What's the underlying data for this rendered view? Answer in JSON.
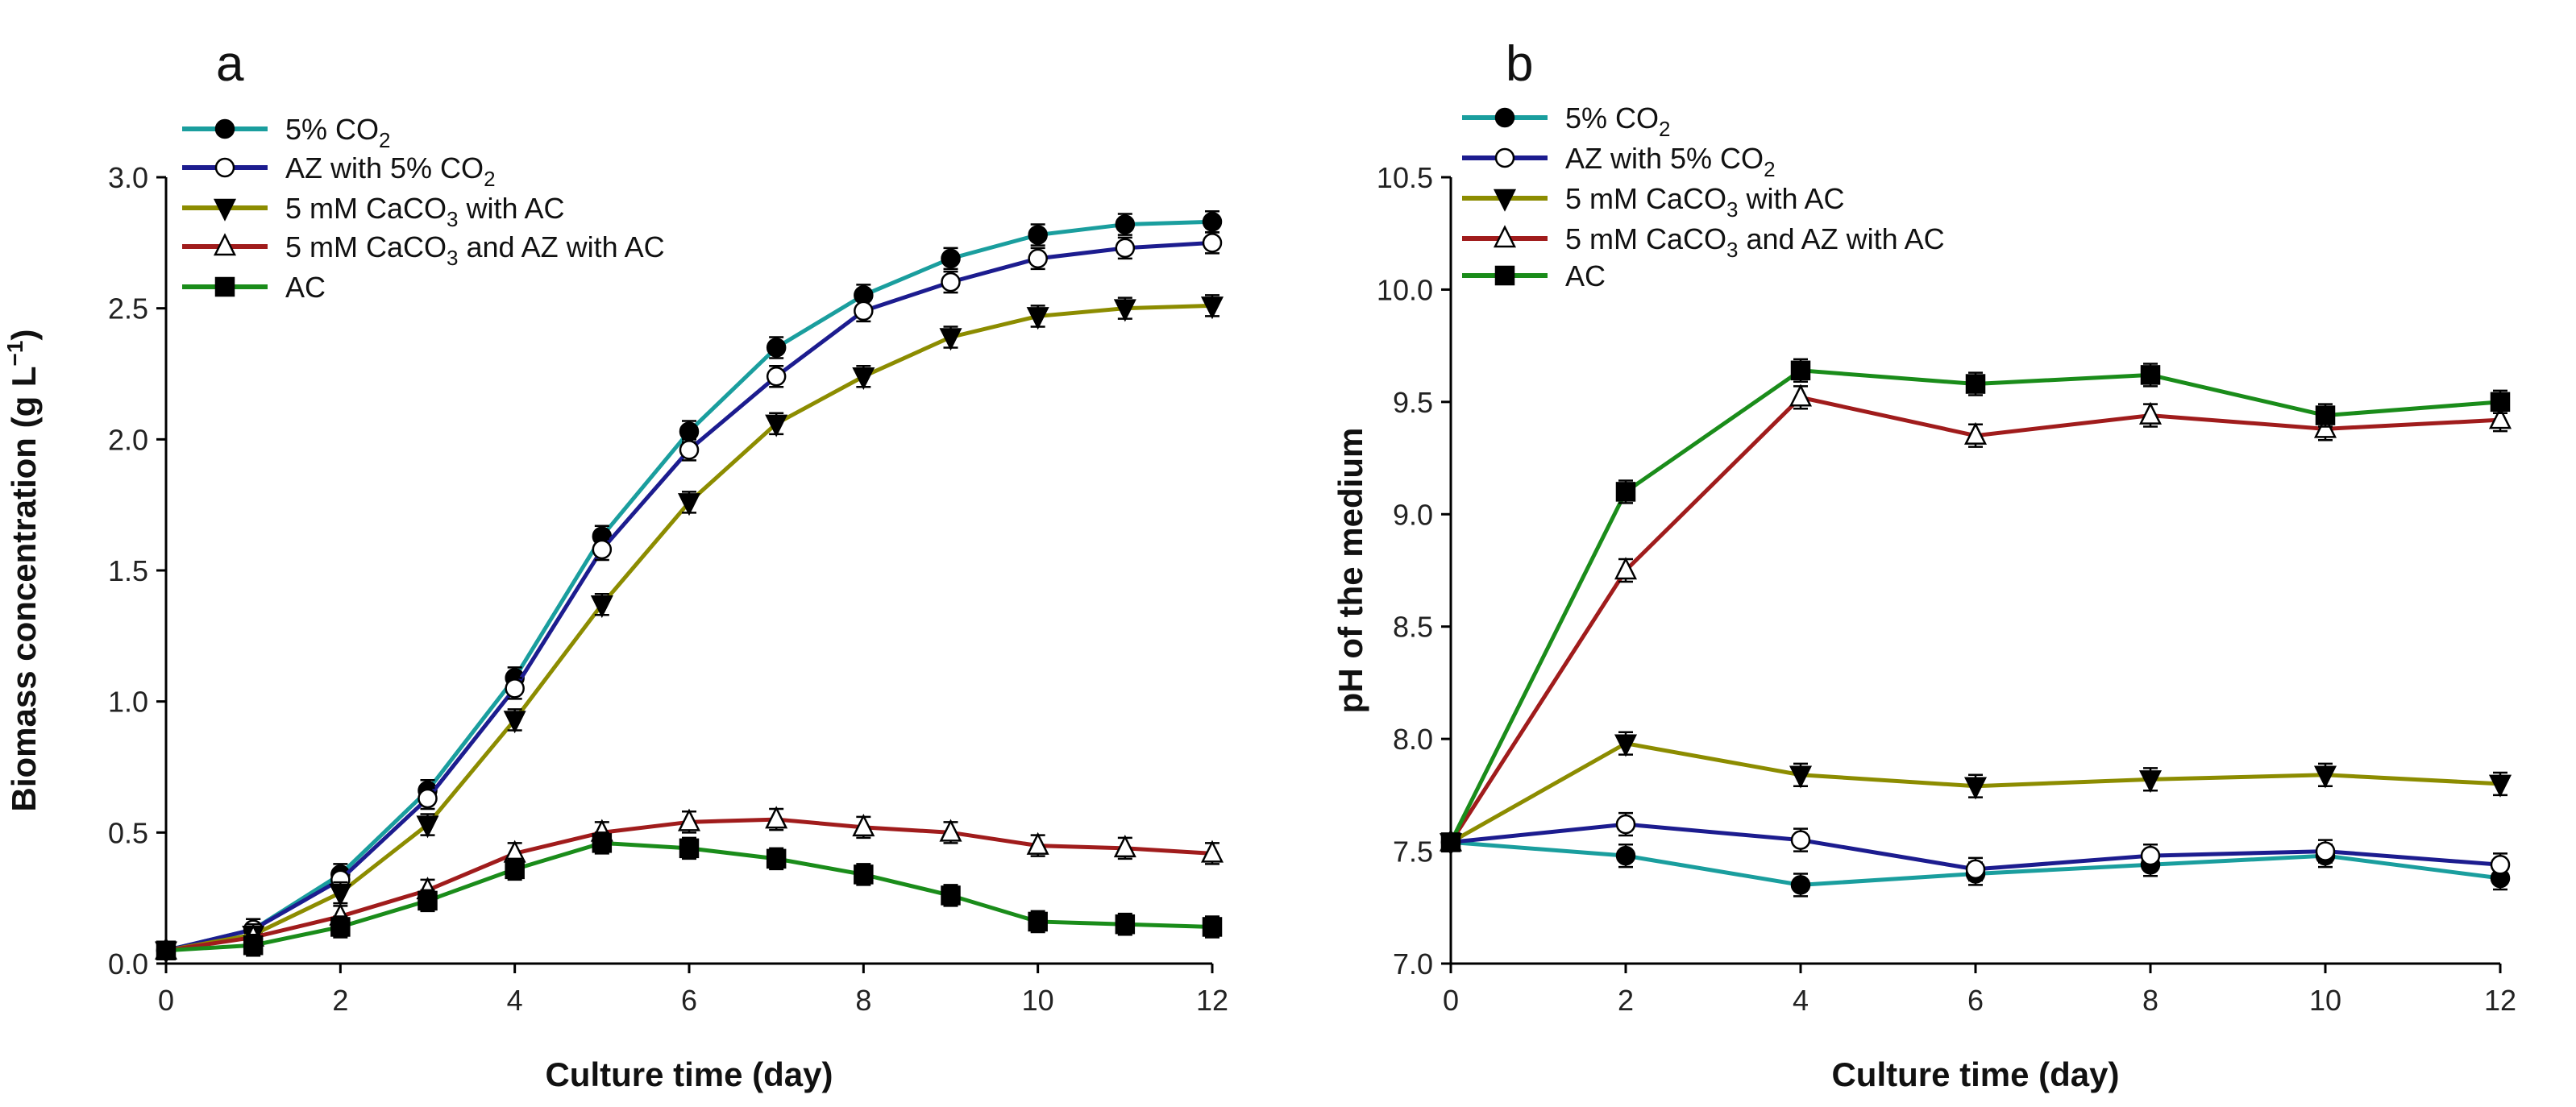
{
  "chart_data": [
    {
      "type": "line",
      "panel_label": "a",
      "xlabel": "Culture time (day)",
      "ylabel": "Biomass concentration (g L",
      "ylabel_sup": "−1",
      "ylabel_end": ")",
      "xlim": [
        0,
        12
      ],
      "ylim": [
        0,
        3.0
      ],
      "xticks": [
        "0",
        "2",
        "4",
        "6",
        "8",
        "10",
        "12"
      ],
      "yticks": [
        "0.0",
        "0.5",
        "1.0",
        "1.5",
        "2.0",
        "2.5",
        "3.0"
      ],
      "x": [
        0,
        1,
        2,
        3,
        4,
        5,
        6,
        7,
        8,
        9,
        10,
        11,
        12
      ],
      "err": 0.04,
      "legend_position": "top-left",
      "series": [
        {
          "name": "5% CO2",
          "label": "5% CO",
          "sub": "2",
          "suffix": "",
          "color": "#1a9e9e",
          "marker": "filled-circle",
          "values": [
            0.05,
            0.13,
            0.34,
            0.66,
            1.09,
            1.63,
            2.03,
            2.35,
            2.55,
            2.69,
            2.78,
            2.82,
            2.83
          ]
        },
        {
          "name": "AZ with 5% CO2",
          "label": "AZ with 5% CO",
          "sub": "2",
          "suffix": "",
          "color": "#1c1c8f",
          "marker": "open-circle",
          "values": [
            0.05,
            0.13,
            0.32,
            0.63,
            1.05,
            1.58,
            1.96,
            2.24,
            2.49,
            2.6,
            2.69,
            2.73,
            2.75
          ]
        },
        {
          "name": "5 mM CaCO3 with AC",
          "label": "5 mM CaCO",
          "sub": "3",
          "suffix": " with AC",
          "color": "#8c8c00",
          "marker": "filled-triangle-down",
          "values": [
            0.05,
            0.11,
            0.27,
            0.53,
            0.93,
            1.37,
            1.76,
            2.06,
            2.24,
            2.39,
            2.47,
            2.5,
            2.51
          ]
        },
        {
          "name": "5 mM CaCO3 and AZ with AC",
          "label": "5 mM CaCO",
          "sub": "3",
          "suffix": " and AZ with AC",
          "color": "#a01c1c",
          "marker": "open-triangle-up",
          "values": [
            0.05,
            0.1,
            0.18,
            0.28,
            0.42,
            0.5,
            0.54,
            0.55,
            0.52,
            0.5,
            0.45,
            0.44,
            0.42
          ]
        },
        {
          "name": "AC",
          "label": "AC",
          "sub": "",
          "suffix": "",
          "color": "#1a8c1a",
          "marker": "filled-square",
          "values": [
            0.05,
            0.07,
            0.14,
            0.24,
            0.36,
            0.46,
            0.44,
            0.4,
            0.34,
            0.26,
            0.16,
            0.15,
            0.14
          ]
        }
      ]
    },
    {
      "type": "line",
      "panel_label": "b",
      "xlabel": "Culture time (day)",
      "ylabel": "pH of the medium",
      "ylabel_sup": "",
      "ylabel_end": "",
      "xlim": [
        0,
        12
      ],
      "ylim": [
        7.0,
        10.5
      ],
      "xticks": [
        "0",
        "2",
        "4",
        "6",
        "8",
        "10",
        "12"
      ],
      "yticks": [
        "7.0",
        "7.5",
        "8.0",
        "8.5",
        "9.0",
        "9.5",
        "10.0",
        "10.5"
      ],
      "x": [
        0,
        2,
        4,
        6,
        8,
        10,
        12
      ],
      "err": 0.05,
      "legend_position": "top-left",
      "series": [
        {
          "name": "5% CO2",
          "label": "5% CO",
          "sub": "2",
          "suffix": "",
          "color": "#1a9e9e",
          "marker": "filled-circle",
          "values": [
            7.54,
            7.48,
            7.35,
            7.4,
            7.44,
            7.48,
            7.38
          ]
        },
        {
          "name": "AZ with 5% CO2",
          "label": "AZ with 5% CO",
          "sub": "2",
          "suffix": "",
          "color": "#1c1c8f",
          "marker": "open-circle",
          "values": [
            7.54,
            7.62,
            7.55,
            7.42,
            7.48,
            7.5,
            7.44
          ]
        },
        {
          "name": "5 mM CaCO3 with AC",
          "label": "5 mM CaCO",
          "sub": "3",
          "suffix": " with AC",
          "color": "#8c8c00",
          "marker": "filled-triangle-down",
          "values": [
            7.54,
            7.98,
            7.84,
            7.79,
            7.82,
            7.84,
            7.8
          ]
        },
        {
          "name": "5 mM CaCO3 and AZ with AC",
          "label": "5 mM CaCO",
          "sub": "3",
          "suffix": " and AZ with AC",
          "color": "#a01c1c",
          "marker": "open-triangle-up",
          "values": [
            7.54,
            8.75,
            9.52,
            9.35,
            9.44,
            9.38,
            9.42
          ]
        },
        {
          "name": "AC",
          "label": "AC",
          "sub": "",
          "suffix": "",
          "color": "#1a8c1a",
          "marker": "filled-square",
          "values": [
            7.54,
            9.1,
            9.64,
            9.58,
            9.62,
            9.44,
            9.5
          ]
        }
      ]
    }
  ]
}
